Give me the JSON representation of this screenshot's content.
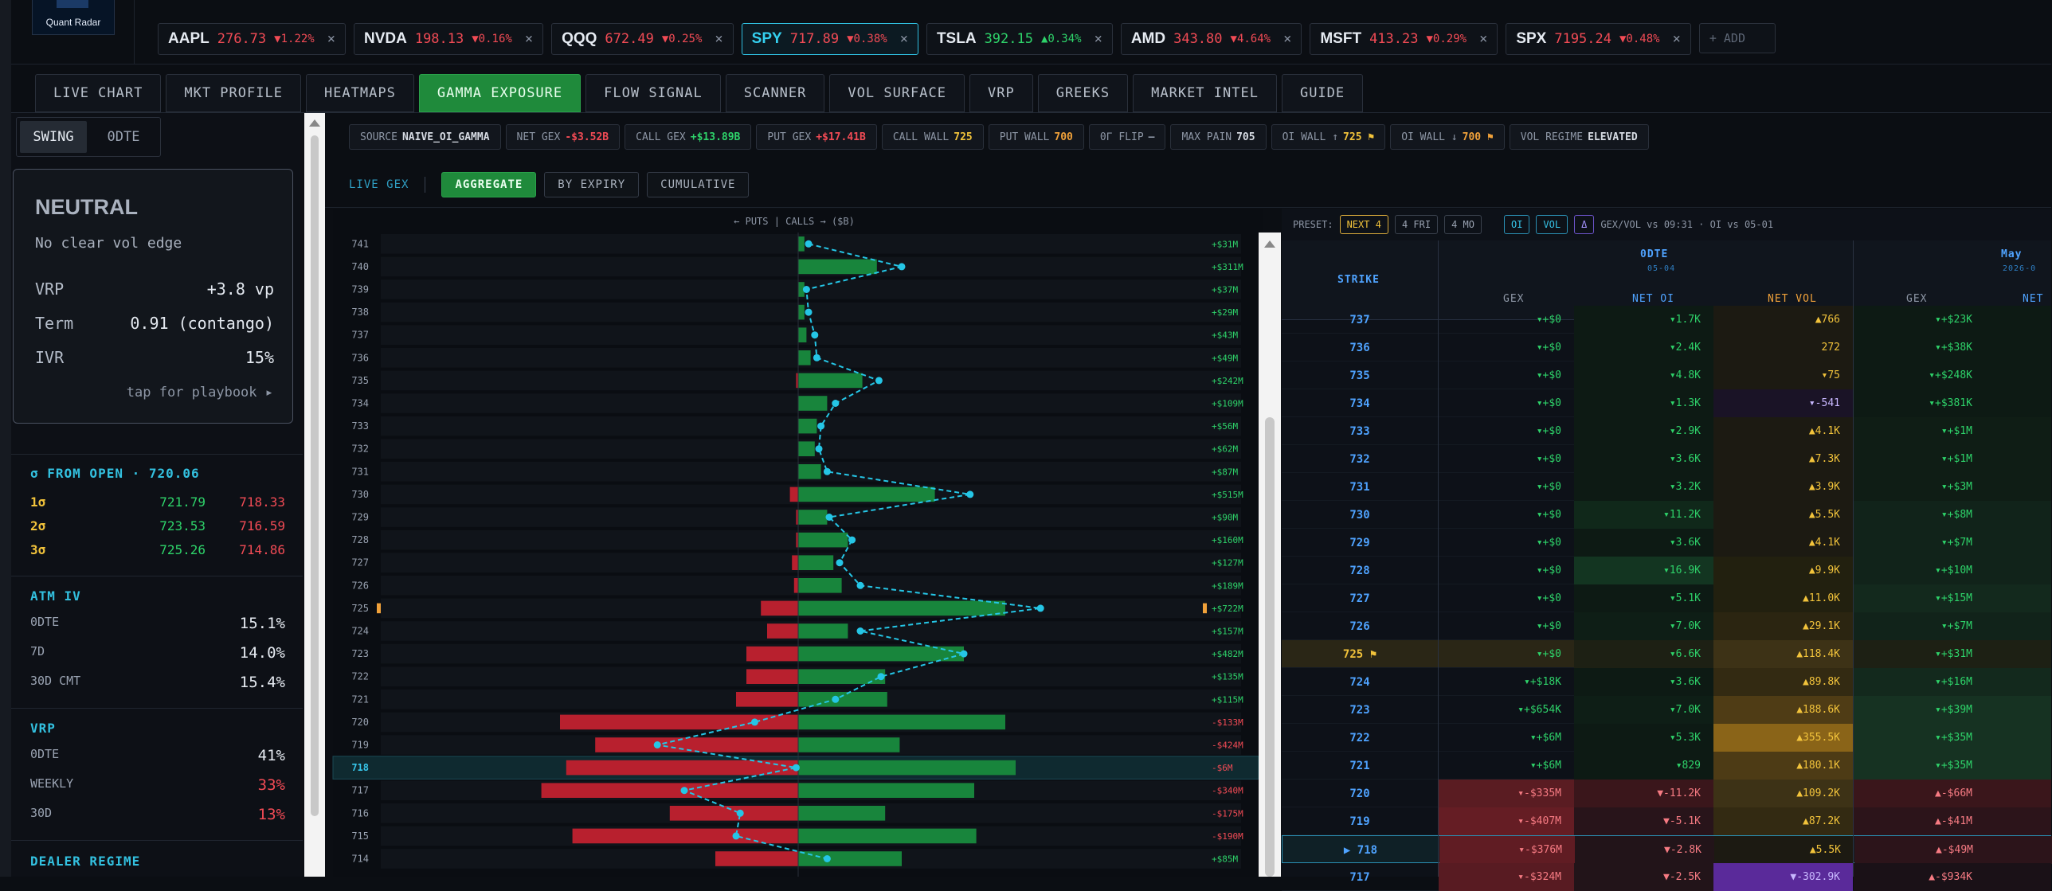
{
  "logo": {
    "text": "Quant Radar"
  },
  "tickers": [
    {
      "sym": "AAPL",
      "px": "276.73",
      "chg": "▼1.22%",
      "dir": "down",
      "sel": false
    },
    {
      "sym": "NVDA",
      "px": "198.13",
      "chg": "▼0.16%",
      "dir": "down",
      "sel": false
    },
    {
      "sym": "QQQ",
      "px": "672.49",
      "chg": "▼0.25%",
      "dir": "down",
      "sel": false
    },
    {
      "sym": "SPY",
      "px": "717.89",
      "chg": "▼0.38%",
      "dir": "down",
      "sel": true
    },
    {
      "sym": "TSLA",
      "px": "392.15",
      "chg": "▲0.34%",
      "dir": "up",
      "sel": false
    },
    {
      "sym": "AMD",
      "px": "343.80",
      "chg": "▼4.64%",
      "dir": "down",
      "sel": false
    },
    {
      "sym": "MSFT",
      "px": "413.23",
      "chg": "▼0.29%",
      "dir": "down",
      "sel": false
    },
    {
      "sym": "SPX",
      "px": "7195.24",
      "chg": "▼0.48%",
      "dir": "down",
      "sel": false
    }
  ],
  "ticker_close": "×",
  "add_label": "+ ADD",
  "tabs": [
    "LIVE CHART",
    "MKT PROFILE",
    "HEATMAPS",
    "GAMMA EXPOSURE",
    "FLOW SIGNAL",
    "SCANNER",
    "VOL SURFACE",
    "VRP",
    "GREEKS",
    "MARKET INTEL",
    "GUIDE"
  ],
  "active_tab": "GAMMA EXPOSURE",
  "mode": {
    "swing": "SWING",
    "odte": "0DTE"
  },
  "regime_card": {
    "title": "NEUTRAL",
    "subtitle": "No clear vol edge",
    "rows": [
      {
        "k": "VRP",
        "v": "+3.8 vp"
      },
      {
        "k": "Term",
        "v": "0.91 (contango)"
      },
      {
        "k": "IVR",
        "v": "15%"
      }
    ],
    "tap": "tap for playbook ▸"
  },
  "sigma": {
    "title": "σ FROM OPEN · 720.06",
    "rows": [
      {
        "s": "1σ",
        "up": "721.79",
        "dn": "718.33"
      },
      {
        "s": "2σ",
        "up": "723.53",
        "dn": "716.59"
      },
      {
        "s": "3σ",
        "up": "725.26",
        "dn": "714.86"
      }
    ]
  },
  "atm_iv": {
    "title": "ATM IV",
    "rows": [
      {
        "k": "0DTE",
        "v": "15.1%"
      },
      {
        "k": "7D",
        "v": "14.0%"
      },
      {
        "k": "30D CMT",
        "v": "15.4%"
      }
    ]
  },
  "vrp": {
    "title": "VRP",
    "rows": [
      {
        "k": "0DTE",
        "v": "41%",
        "c": "#e6ebf2"
      },
      {
        "k": "WEEKLY",
        "v": "33%",
        "c": "#f24b55"
      },
      {
        "k": "30D",
        "v": "13%",
        "c": "#f24b55"
      }
    ]
  },
  "dealer": {
    "title": "DEALER REGIME"
  },
  "pills": [
    {
      "k": "SOURCE",
      "v": "NAIVE_OI_GAMMA",
      "c": "#d6dbe3"
    },
    {
      "k": "NET GEX",
      "v": "-$3.52B",
      "c": "#f24b55"
    },
    {
      "k": "CALL GEX",
      "v": "+$13.89B",
      "c": "#2ed36a"
    },
    {
      "k": "PUT GEX",
      "v": "+$17.41B",
      "c": "#f24b55"
    },
    {
      "k": "CALL WALL",
      "v": "725",
      "c": "#f2c33b"
    },
    {
      "k": "PUT WALL",
      "v": "700",
      "c": "#f0a13a"
    },
    {
      "k": "0Γ FLIP",
      "v": "—",
      "c": "#8d96a5"
    },
    {
      "k": "MAX PAIN",
      "v": "705",
      "c": "#d6dbe3"
    },
    {
      "k": "OI WALL ↑",
      "v": "725 ⚑",
      "c": "#f2c33b"
    },
    {
      "k": "OI WALL ↓",
      "v": "700 ⚑",
      "c": "#f0a13a"
    },
    {
      "k": "VOL REGIME",
      "v": "ELEVATED",
      "c": "#d6dbe3"
    }
  ],
  "subbar": {
    "live": "LIVE GEX",
    "buttons": [
      "AGGREGATE",
      "BY EXPIRY",
      "CUMULATIVE"
    ]
  },
  "chart_data": {
    "type": "bar",
    "title": "← PUTS | CALLS → ($B)",
    "categories": [
      "741",
      "740",
      "739",
      "738",
      "737",
      "736",
      "735",
      "734",
      "733",
      "732",
      "731",
      "730",
      "729",
      "728",
      "727",
      "726",
      "725",
      "724",
      "723",
      "722",
      "721",
      "720",
      "719",
      "718",
      "717",
      "716",
      "715",
      "714"
    ],
    "series": [
      {
        "name": "PUTS",
        "values": [
          0,
          0,
          0,
          0,
          0,
          0,
          -0.01,
          0,
          0,
          0,
          0,
          -0.04,
          -0.01,
          -0.01,
          -0.03,
          -0.02,
          -0.18,
          -0.15,
          -0.25,
          -0.25,
          -0.3,
          -1.15,
          -0.98,
          -1.12,
          -1.24,
          -0.62,
          -1.09,
          -0.4
        ]
      },
      {
        "name": "CALLS",
        "values": [
          0.03,
          0.38,
          0.03,
          0.03,
          0.04,
          0.06,
          0.31,
          0.14,
          0.09,
          0.08,
          0.11,
          0.66,
          0.14,
          0.24,
          0.17,
          0.21,
          1.0,
          0.24,
          0.8,
          0.42,
          0.43,
          1.0,
          0.49,
          1.05,
          0.85,
          0.42,
          0.86,
          0.5
        ]
      }
    ],
    "net_labels": [
      "+$31M",
      "+$311M",
      "+$37M",
      "+$29M",
      "+$43M",
      "+$49M",
      "+$242M",
      "+$109M",
      "+$56M",
      "+$62M",
      "+$87M",
      "+$515M",
      "+$90M",
      "+$160M",
      "+$127M",
      "+$189M",
      "+$722M",
      "+$157M",
      "+$482M",
      "+$135M",
      "+$115M",
      "-$133M",
      "-$424M",
      "-$6M",
      "-$340M",
      "-$175M",
      "-$190M",
      "+$85M"
    ],
    "net_line": [
      0.05,
      0.5,
      0.04,
      0.05,
      0.08,
      0.09,
      0.39,
      0.18,
      0.11,
      0.1,
      0.14,
      0.83,
      0.15,
      0.26,
      0.2,
      0.3,
      1.17,
      0.3,
      0.8,
      0.4,
      0.18,
      -0.21,
      -0.68,
      -0.01,
      -0.55,
      -0.28,
      -0.3,
      0.14
    ],
    "call_wall_strike": "725",
    "spot_strike": "718"
  },
  "table": {
    "preset_label": "PRESET:",
    "presets": [
      "NEXT 4",
      "4 FRI",
      "4 MO"
    ],
    "toggles": [
      "OI",
      "VOL",
      "Δ"
    ],
    "meta": "GEX/VOL vs 09:31 · OI vs 05-01",
    "headers": {
      "strike": "STRIKE",
      "exp1": "0DTE",
      "exp1_date": "05-04",
      "exp2": "May",
      "exp2_date": "2026-0",
      "gex": "GEX",
      "net_oi": "NET OI",
      "net_vol": "NET VOL",
      "net_oi2": "NET"
    },
    "rows": [
      {
        "k": "737",
        "gex": "▾+$0",
        "oi": "▾1.7K",
        "vol": "▲766",
        "gex2": "▾+$23K",
        "bg_oi": "#0d1a14",
        "bg_vol": "#1c1a12",
        "bg_g2": "#0d1a14"
      },
      {
        "k": "736",
        "gex": "▾+$0",
        "oi": "▾2.4K",
        "vol": "272",
        "gex2": "▾+$38K",
        "bg_oi": "#0d1a14",
        "bg_vol": "#1c1a12",
        "bg_g2": "#0d1a14"
      },
      {
        "k": "735",
        "gex": "▾+$0",
        "oi": "▾4.8K",
        "vol": "▾75",
        "gex2": "▾+$248K",
        "bg_oi": "#0d1a14",
        "bg_vol": "#1c1a12",
        "bg_g2": "#0d1a14"
      },
      {
        "k": "734",
        "gex": "▾+$0",
        "oi": "▾1.3K",
        "vol": "▾-541",
        "gex2": "▾+$381K",
        "bg_oi": "#0d1a14",
        "bg_vol": "#1a1326",
        "bg_g2": "#0d1a14"
      },
      {
        "k": "733",
        "gex": "▾+$0",
        "oi": "▾2.9K",
        "vol": "▲4.1K",
        "gex2": "▾+$1M",
        "bg_oi": "#0d1a14",
        "bg_vol": "#1c1a12",
        "bg_g2": "#0f1d15"
      },
      {
        "k": "732",
        "gex": "▾+$0",
        "oi": "▾3.6K",
        "vol": "▲7.3K",
        "gex2": "▾+$1M",
        "bg_oi": "#0d1a14",
        "bg_vol": "#1c1a12",
        "bg_g2": "#0f1d15"
      },
      {
        "k": "731",
        "gex": "▾+$0",
        "oi": "▾3.2K",
        "vol": "▲3.9K",
        "gex2": "▾+$3M",
        "bg_oi": "#0d1a14",
        "bg_vol": "#1c1a12",
        "bg_g2": "#0f1d15"
      },
      {
        "k": "730",
        "gex": "▾+$0",
        "oi": "▾11.2K",
        "vol": "▲5.5K",
        "gex2": "▾+$8M",
        "bg_oi": "#10281a",
        "bg_vol": "#1c1a12",
        "bg_g2": "#11231a"
      },
      {
        "k": "729",
        "gex": "▾+$0",
        "oi": "▾3.6K",
        "vol": "▲4.1K",
        "gex2": "▾+$7M",
        "bg_oi": "#0d1a14",
        "bg_vol": "#1c1a12",
        "bg_g2": "#11231a"
      },
      {
        "k": "728",
        "gex": "▾+$0",
        "oi": "▾16.9K",
        "vol": "▲9.9K",
        "gex2": "▾+$10M",
        "bg_oi": "#133521",
        "bg_vol": "#22200f",
        "bg_g2": "#11231a"
      },
      {
        "k": "727",
        "gex": "▾+$0",
        "oi": "▾5.1K",
        "vol": "▲11.0K",
        "gex2": "▾+$15M",
        "bg_oi": "#0d1a14",
        "bg_vol": "#22200f",
        "bg_g2": "#13291d"
      },
      {
        "k": "726",
        "gex": "▾+$0",
        "oi": "▾7.0K",
        "vol": "▲29.1K",
        "gex2": "▾+$7M",
        "bg_oi": "#0e1e16",
        "bg_vol": "#2b2511",
        "bg_g2": "#11231a"
      },
      {
        "k": "725 ⚑",
        "gex": "▾+$0",
        "oi": "▾6.6K",
        "vol": "▲118.4K",
        "gex2": "▾+$31M",
        "bg_oi": "#1d2014",
        "bg_vol": "#3d3216",
        "bg_g2": "#1d2014",
        "wall": true
      },
      {
        "k": "724",
        "gex": "▾+$18K",
        "oi": "▾3.6K",
        "vol": "▲89.8K",
        "gex2": "▾+$16M",
        "bg_oi": "#0d1a14",
        "bg_vol": "#332a12",
        "bg_g2": "#13291d"
      },
      {
        "k": "723",
        "gex": "▾+$654K",
        "oi": "▾7.0K",
        "vol": "▲188.6K",
        "gex2": "▾+$39M",
        "bg_oi": "#0e1e16",
        "bg_vol": "#4f3c15",
        "bg_g2": "#163222"
      },
      {
        "k": "722",
        "gex": "▾+$6M",
        "oi": "▾5.3K",
        "vol": "▲355.5K",
        "gex2": "▾+$35M",
        "bg_oi": "#0d1a14",
        "bg_vol": "#8a6418",
        "bg_g2": "#163222"
      },
      {
        "k": "721",
        "gex": "▾+$6M",
        "oi": "▾829",
        "vol": "▲180.1K",
        "gex2": "▾+$35M",
        "bg_oi": "#0d1a14",
        "bg_vol": "#4d3b15",
        "bg_g2": "#163222"
      },
      {
        "k": "720",
        "gex": "▾-$335M",
        "oi": "▼-11.2K",
        "vol": "▲109.2K",
        "gex2": "▲-$66M",
        "bg_g1": "#5a1c22",
        "bg_oi": "#3a161b",
        "bg_vol": "#3d3216",
        "bg_g2": "#3a161b"
      },
      {
        "k": "719",
        "gex": "▾-$407M",
        "oi": "▼-5.1K",
        "vol": "▲87.2K",
        "gex2": "▲-$41M",
        "bg_g1": "#651d24",
        "bg_oi": "#28141a",
        "bg_vol": "#332a12",
        "bg_g2": "#2c141a"
      },
      {
        "k": "▶ 718",
        "gex": "▾-$376M",
        "oi": "▼-2.8K",
        "vol": "▲5.5K",
        "gex2": "▲-$49M",
        "bg_g1": "#601c23",
        "bg_oi": "#221419",
        "bg_vol": "#1c1a12",
        "bg_g2": "#2c141a",
        "spot": true
      },
      {
        "k": "717",
        "gex": "▾-$324M",
        "oi": "▼-2.5K",
        "vol": "▼-302.9K",
        "gex2": "▲-$934K",
        "bg_g1": "#581b22",
        "bg_oi": "#221419",
        "bg_vol": "#5a2a9a",
        "bg_g2": "#1a1117"
      }
    ]
  },
  "colors": {
    "call": "#18853c",
    "put": "#b8202e",
    "line": "#25c6e6",
    "accent": "#2fbfe0"
  }
}
